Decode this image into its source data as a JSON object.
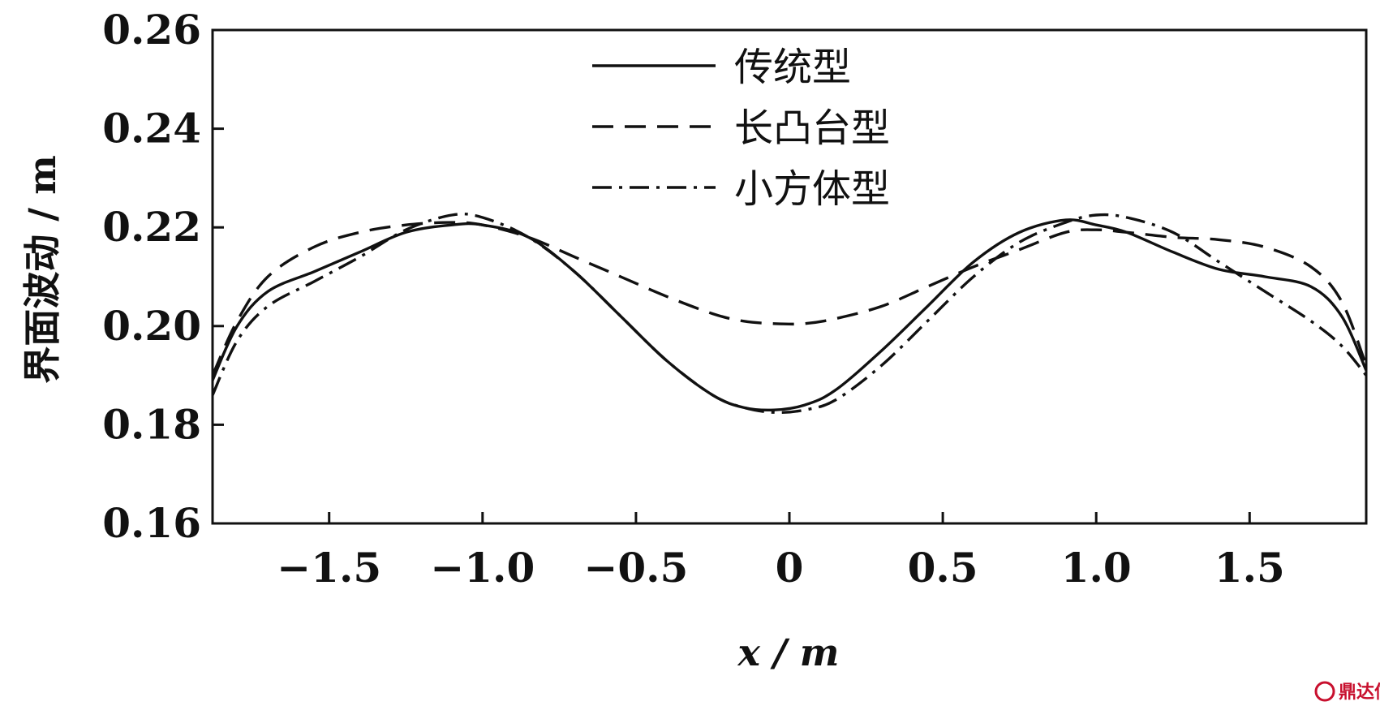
{
  "chart_data": {
    "type": "line",
    "xlabel": "x / m",
    "ylabel": "界面波动 / m",
    "xlim": [
      -1.88,
      1.88
    ],
    "ylim": [
      0.16,
      0.26
    ],
    "xticks": [
      -1.5,
      -1.0,
      -0.5,
      0,
      0.5,
      1.0,
      1.5
    ],
    "xtick_labels": [
      "−1.5",
      "−1.0",
      "−0.5",
      "0",
      "0.5",
      "1.0",
      "1.5"
    ],
    "yticks": [
      0.16,
      0.18,
      0.2,
      0.22,
      0.24,
      0.26
    ],
    "ytick_labels": [
      "0.16",
      "0.18",
      "0.20",
      "0.22",
      "0.24",
      "0.26"
    ],
    "grid": false,
    "legend_position": "top-center",
    "series": [
      {
        "name": "传统型",
        "style": "solid",
        "color": "#111111",
        "x": [
          -1.88,
          -1.8,
          -1.7,
          -1.55,
          -1.4,
          -1.25,
          -1.1,
          -1.0,
          -0.85,
          -0.7,
          -0.55,
          -0.4,
          -0.25,
          -0.15,
          -0.05,
          0.05,
          0.15,
          0.3,
          0.45,
          0.6,
          0.75,
          0.9,
          1.0,
          1.1,
          1.25,
          1.4,
          1.55,
          1.7,
          1.8,
          1.88
        ],
        "y": [
          0.189,
          0.2,
          0.207,
          0.211,
          0.215,
          0.219,
          0.2205,
          0.2205,
          0.218,
          0.211,
          0.202,
          0.193,
          0.186,
          0.1835,
          0.183,
          0.184,
          0.187,
          0.195,
          0.204,
          0.213,
          0.219,
          0.2215,
          0.2205,
          0.219,
          0.215,
          0.2115,
          0.21,
          0.208,
          0.202,
          0.191
        ]
      },
      {
        "name": "长凸台型",
        "style": "dashed",
        "color": "#111111",
        "x": [
          -1.88,
          -1.8,
          -1.7,
          -1.55,
          -1.4,
          -1.25,
          -1.1,
          -1.0,
          -0.85,
          -0.7,
          -0.55,
          -0.4,
          -0.25,
          -0.15,
          -0.05,
          0.05,
          0.15,
          0.3,
          0.45,
          0.6,
          0.75,
          0.9,
          1.0,
          1.1,
          1.25,
          1.4,
          1.55,
          1.7,
          1.8,
          1.88
        ],
        "y": [
          0.19,
          0.201,
          0.21,
          0.216,
          0.219,
          0.2205,
          0.221,
          0.2205,
          0.218,
          0.214,
          0.21,
          0.206,
          0.2025,
          0.201,
          0.2005,
          0.2005,
          0.2015,
          0.204,
          0.208,
          0.212,
          0.2155,
          0.219,
          0.2195,
          0.219,
          0.218,
          0.2175,
          0.216,
          0.212,
          0.205,
          0.192
        ]
      },
      {
        "name": "小方体型",
        "style": "dashdot",
        "color": "#111111",
        "x": [
          -1.88,
          -1.8,
          -1.7,
          -1.55,
          -1.4,
          -1.25,
          -1.1,
          -1.0,
          -0.85,
          -0.7,
          -0.55,
          -0.4,
          -0.25,
          -0.15,
          -0.05,
          0.05,
          0.15,
          0.3,
          0.45,
          0.6,
          0.75,
          0.9,
          1.0,
          1.1,
          1.25,
          1.4,
          1.55,
          1.7,
          1.8,
          1.88
        ],
        "y": [
          0.186,
          0.197,
          0.204,
          0.209,
          0.214,
          0.2195,
          0.2225,
          0.222,
          0.218,
          0.211,
          0.202,
          0.193,
          0.186,
          0.1835,
          0.1825,
          0.183,
          0.185,
          0.192,
          0.201,
          0.21,
          0.217,
          0.221,
          0.2225,
          0.222,
          0.219,
          0.213,
          0.207,
          0.201,
          0.196,
          0.19
        ]
      }
    ]
  },
  "watermark": {
    "text": "鼎达信",
    "color": "#c8102e"
  }
}
